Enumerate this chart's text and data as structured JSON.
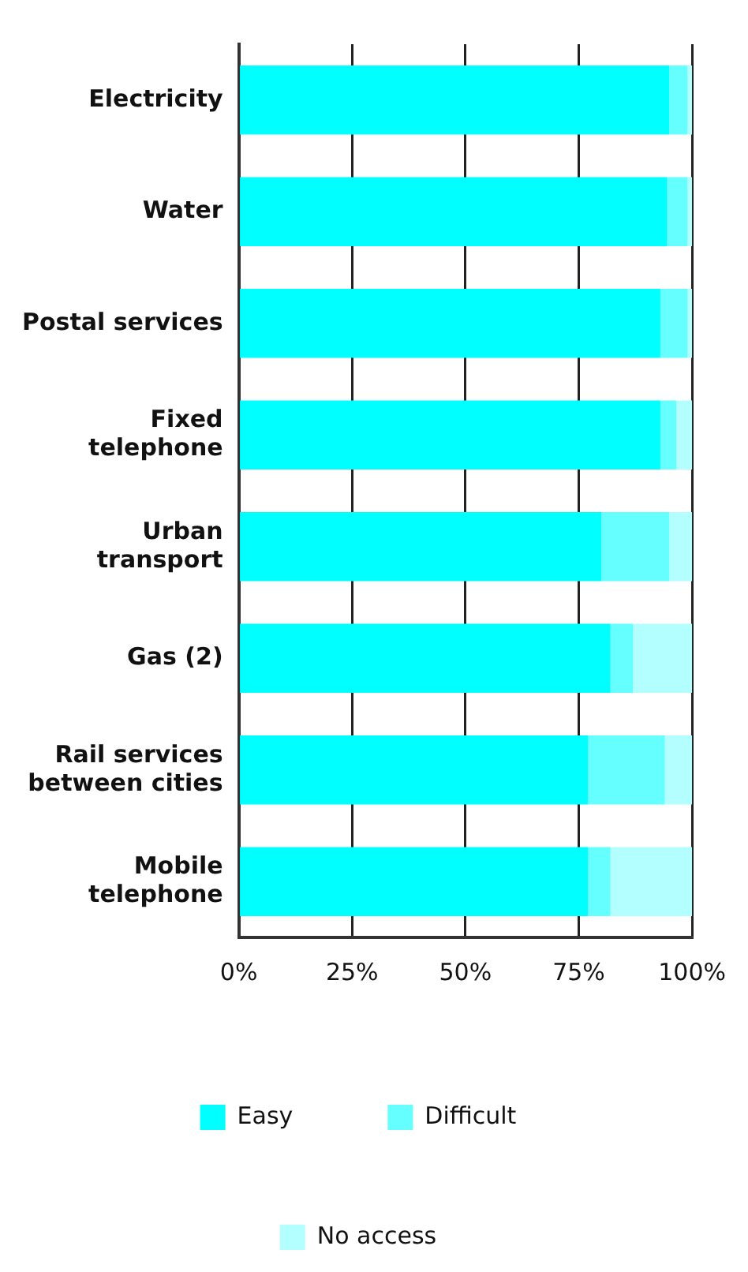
{
  "chart_data": {
    "type": "bar",
    "orientation": "horizontal",
    "stacked": true,
    "categories": [
      "Electricity",
      "Water",
      "Postal services",
      "Fixed\ntelephone",
      "Urban\ntransport",
      "Gas (2)",
      "Rail services\nbetween cities",
      "Mobile\ntelephone"
    ],
    "series": [
      {
        "name": "Easy",
        "color": "#00ffff",
        "values": [
          95,
          94.5,
          93,
          93,
          80,
          82,
          77,
          77
        ]
      },
      {
        "name": "Difficult",
        "color": "#66ffff",
        "values": [
          4,
          4.5,
          6,
          3.5,
          15,
          5,
          17,
          5
        ]
      },
      {
        "name": "No access",
        "color": "#b3ffff",
        "values": [
          1,
          1,
          1,
          3.5,
          5,
          13,
          6,
          18
        ]
      }
    ],
    "xlim": [
      0,
      100
    ],
    "xticks": [
      {
        "value": 0,
        "label": "0%"
      },
      {
        "value": 25,
        "label": "25%"
      },
      {
        "value": 50,
        "label": "50%"
      },
      {
        "value": 75,
        "label": "75%"
      },
      {
        "value": 100,
        "label": "100%"
      }
    ],
    "grid": "x",
    "legend": "bottom"
  }
}
